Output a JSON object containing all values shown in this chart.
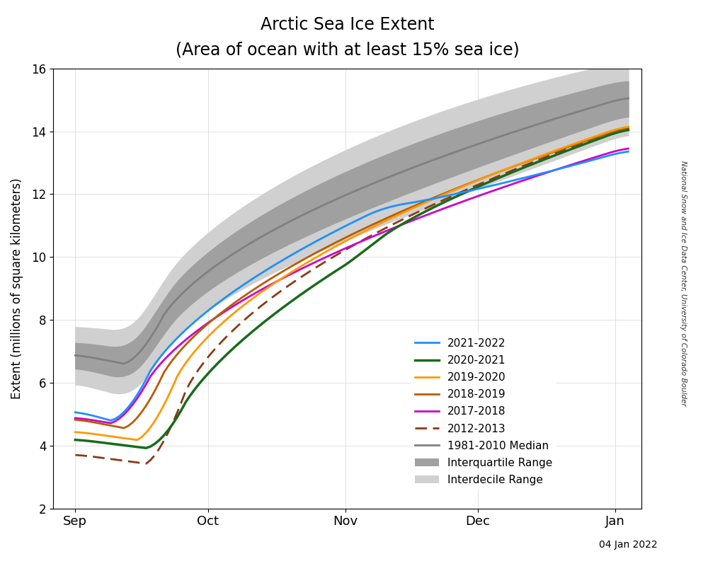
{
  "title_line1": "Arctic Sea Ice Extent",
  "title_line2": "(Area of ocean with at least 15% sea ice)",
  "ylabel": "Extent (millions of square kilometers)",
  "date_label": "04 Jan 2022",
  "watermark": "National Snow and Ice Data Center, University of Colorado Boulder",
  "ylim": [
    2,
    16
  ],
  "yticks": [
    2,
    4,
    6,
    8,
    10,
    12,
    14,
    16
  ],
  "month_labels": [
    "Sep",
    "Oct",
    "Nov",
    "Dec",
    "Jan"
  ],
  "colors": {
    "2021_2022": "#1e90ff",
    "2020_2021": "#1a6b1a",
    "2019_2020": "#ff9900",
    "2018_2019": "#b85c00",
    "2017_2018": "#cc00cc",
    "2012_2013": "#8b3a1a",
    "median": "#808080",
    "iqr": "#a0a0a0",
    "idr": "#d0d0d0"
  },
  "background_color": "#ffffff"
}
